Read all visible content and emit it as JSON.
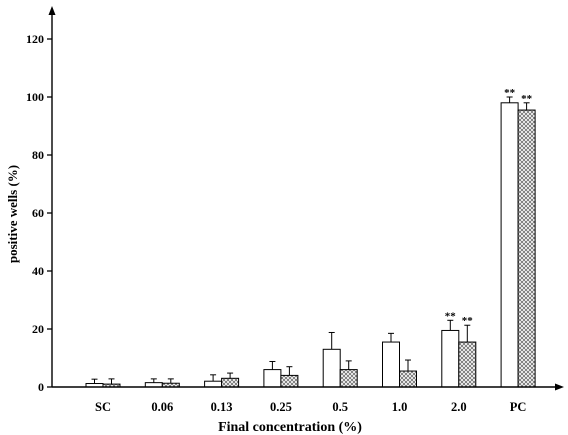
{
  "chart_data": {
    "type": "bar",
    "xlabel": "Final concentration (%)",
    "ylabel": "positive wells (%)",
    "categories": [
      "SC",
      "0.06",
      "0.13",
      "0.25",
      "0.5",
      "1.0",
      "2.0",
      "PC"
    ],
    "ylim": [
      0,
      120
    ],
    "yticks": [
      0,
      20,
      40,
      60,
      80,
      100,
      120
    ],
    "grid": false,
    "legend": "none",
    "series": [
      {
        "fill": "#ffffff",
        "hatch": false,
        "values": [
          1.2,
          1.5,
          2.0,
          6.0,
          13.0,
          15.5,
          19.5,
          98.0
        ],
        "error_upper": [
          1.5,
          1.3,
          2.2,
          2.8,
          5.8,
          3.0,
          3.5,
          2.0
        ],
        "annotations": [
          null,
          null,
          null,
          null,
          null,
          null,
          "**",
          "**"
        ]
      },
      {
        "fill": "#ffffff",
        "hatch": true,
        "hatch_color": "#6e6e6e",
        "values": [
          1.0,
          1.3,
          3.0,
          4.0,
          6.0,
          5.5,
          15.5,
          95.5
        ],
        "error_upper": [
          1.8,
          1.5,
          1.8,
          3.0,
          3.0,
          3.8,
          5.8,
          2.5
        ],
        "annotations": [
          null,
          null,
          null,
          null,
          null,
          null,
          "**",
          "**"
        ]
      }
    ]
  }
}
